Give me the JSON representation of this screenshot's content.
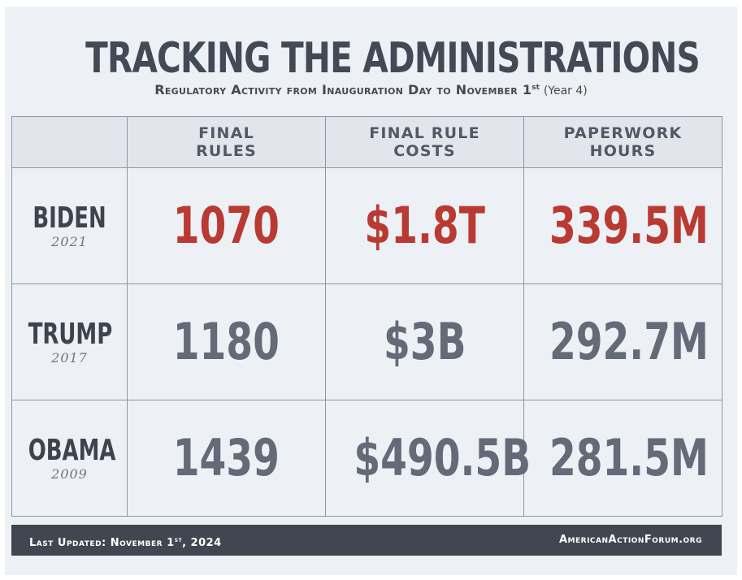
{
  "title": "TRACKING THE ADMINISTRATIONS",
  "subtitle": {
    "main": "Regulatory Activity from Inauguration Day to November 1",
    "sup": "st",
    "paren": "(Year 4)"
  },
  "footer": {
    "updated_main": "Last Updated: November 1",
    "updated_sup": "st",
    "updated_tail": ", 2024",
    "site": "AmericanActionForum.org"
  },
  "colors": {
    "highlight": "#b93a32",
    "value": "#646a78",
    "text_dark": "#434955",
    "footer_bg": "#414751"
  },
  "chart_data": {
    "type": "table",
    "title": "TRACKING THE ADMINISTRATIONS",
    "columns": [
      "",
      "FINAL RULES",
      "FINAL RULE COSTS",
      "PAPERWORK HOURS"
    ],
    "rows": [
      {
        "admin": "BIDEN",
        "year": "2021",
        "final_rules": "1070",
        "final_rule_costs": "$1.8T",
        "paperwork_hours": "339.5M",
        "highlight": true
      },
      {
        "admin": "TRUMP",
        "year": "2017",
        "final_rules": "1180",
        "final_rule_costs": "$3B",
        "paperwork_hours": "292.7M",
        "highlight": false
      },
      {
        "admin": "OBAMA",
        "year": "2009",
        "final_rules": "1439",
        "final_rule_costs": "$490.5B",
        "paperwork_hours": "281.5M",
        "highlight": false
      }
    ]
  }
}
